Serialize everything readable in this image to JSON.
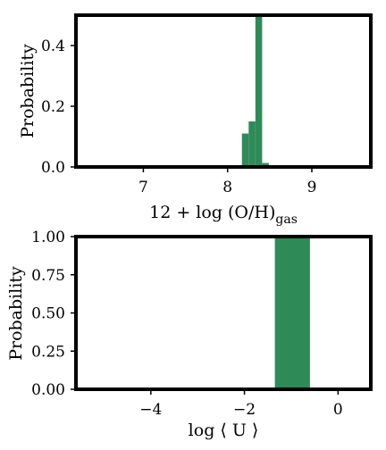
{
  "chart_data": [
    {
      "type": "bar",
      "xlabel_main": "12 + log (O/H)",
      "xlabel_sub": "gas",
      "ylabel": "Probability",
      "xlim": [
        6.2,
        9.7
      ],
      "ylim": [
        0,
        0.5
      ],
      "xticks": [
        7,
        8,
        9
      ],
      "yticks": [
        0.0,
        0.2,
        0.4
      ],
      "ytick_labels": [
        "0.0",
        "0.2",
        "0.4"
      ],
      "bar_color": "#2e8b57",
      "bins": [
        {
          "x0": 8.17,
          "x1": 8.25,
          "value": 0.11
        },
        {
          "x0": 8.25,
          "x1": 8.33,
          "value": 0.15
        },
        {
          "x0": 8.33,
          "x1": 8.41,
          "value": 0.5
        },
        {
          "x0": 8.41,
          "x1": 8.49,
          "value": 0.013
        }
      ]
    },
    {
      "type": "bar",
      "xlabel_main": "log ⟨ U ⟩",
      "ylabel": "Probability",
      "xlim": [
        -5.6,
        0.7
      ],
      "ylim": [
        0,
        1.0
      ],
      "xticks": [
        -4,
        -2,
        0
      ],
      "xtick_labels": [
        "−4",
        "−2",
        "0"
      ],
      "yticks": [
        0.0,
        0.25,
        0.5,
        0.75,
        1.0
      ],
      "ytick_labels": [
        "0.00",
        "0.25",
        "0.50",
        "0.75",
        "1.00"
      ],
      "bar_color": "#2e8b57",
      "bins": [
        {
          "x0": -1.35,
          "x1": -0.6,
          "value": 1.0
        }
      ]
    }
  ]
}
